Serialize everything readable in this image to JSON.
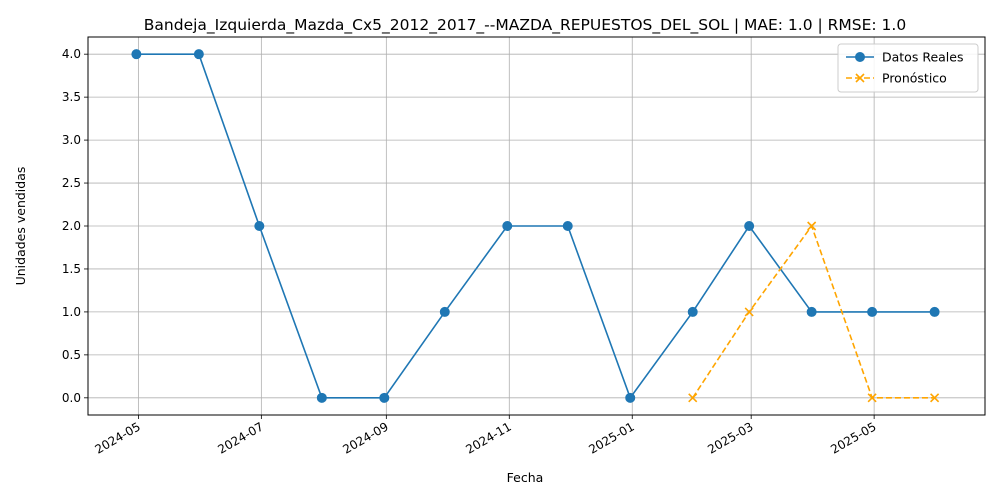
{
  "chart_data": {
    "type": "line",
    "title": "Bandeja_Izquierda_Mazda_Cx5_2012_2017_--MAZDA_REPUESTOS_DEL_SOL | MAE: 1.0 | RMSE: 1.0",
    "xlabel": "Fecha",
    "ylabel": "Unidades vendidas",
    "xlim": [
      "2024-04-06",
      "2025-06-25"
    ],
    "ylim": [
      -0.2,
      4.2
    ],
    "x_ticks": [
      "2024-05",
      "2024-07",
      "2024-09",
      "2024-11",
      "2025-01",
      "2025-03",
      "2025-05"
    ],
    "y_ticks": [
      "0.0",
      "0.5",
      "1.0",
      "1.5",
      "2.0",
      "2.5",
      "3.0",
      "3.5",
      "4.0"
    ],
    "grid": true,
    "legend_position": "top-right",
    "series": [
      {
        "name": "Datos Reales",
        "color": "#1f77b4",
        "line_style": "solid",
        "marker": "circle",
        "points": [
          {
            "x": "2024-04-30",
            "y": 4
          },
          {
            "x": "2024-05-31",
            "y": 4
          },
          {
            "x": "2024-06-30",
            "y": 2
          },
          {
            "x": "2024-07-31",
            "y": 0
          },
          {
            "x": "2024-08-31",
            "y": 0
          },
          {
            "x": "2024-09-30",
            "y": 1
          },
          {
            "x": "2024-10-31",
            "y": 2
          },
          {
            "x": "2024-11-30",
            "y": 2
          },
          {
            "x": "2024-12-31",
            "y": 0
          },
          {
            "x": "2025-01-31",
            "y": 1
          },
          {
            "x": "2025-02-28",
            "y": 2
          },
          {
            "x": "2025-03-31",
            "y": 1
          },
          {
            "x": "2025-04-30",
            "y": 1
          },
          {
            "x": "2025-05-31",
            "y": 1
          }
        ]
      },
      {
        "name": "Pronóstico",
        "color": "#ffa500",
        "line_style": "dashed",
        "marker": "x",
        "points": [
          {
            "x": "2025-01-31",
            "y": 0
          },
          {
            "x": "2025-02-28",
            "y": 1
          },
          {
            "x": "2025-03-31",
            "y": 2
          },
          {
            "x": "2025-04-30",
            "y": 0
          },
          {
            "x": "2025-05-31",
            "y": 0
          }
        ]
      }
    ]
  }
}
